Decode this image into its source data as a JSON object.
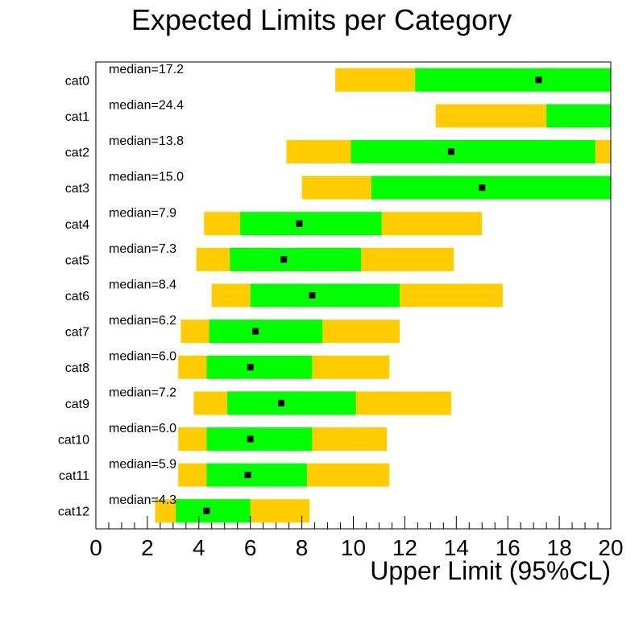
{
  "chart_data": {
    "type": "bar",
    "subtype": "brazil-band",
    "title": "Expected Limits per Category",
    "xlabel": "Upper Limit (95%CL)",
    "ylabel": "",
    "xlim": [
      0,
      20
    ],
    "xticks": [
      "0",
      "2",
      "4",
      "6",
      "8",
      "10",
      "12",
      "14",
      "16",
      "18",
      "20"
    ],
    "grid": false,
    "legend": "none",
    "colors": {
      "band68": "#00ff00",
      "band95": "#ffcc00",
      "median": "#000000",
      "frame": "#000000"
    },
    "categories": [
      {
        "label": "cat0",
        "median_label": "median=17.2",
        "median": 17.2,
        "band95": [
          9.3,
          20.0
        ],
        "band68": [
          12.4,
          20.0
        ]
      },
      {
        "label": "cat1",
        "median_label": "median=24.4",
        "median": 24.4,
        "band95": [
          13.2,
          20.0
        ],
        "band68": [
          17.5,
          20.0
        ]
      },
      {
        "label": "cat2",
        "median_label": "median=13.8",
        "median": 13.8,
        "band95": [
          7.4,
          20.0
        ],
        "band68": [
          9.9,
          19.4
        ]
      },
      {
        "label": "cat3",
        "median_label": "median=15.0",
        "median": 15.0,
        "band95": [
          8.0,
          20.0
        ],
        "band68": [
          10.7,
          20.0
        ]
      },
      {
        "label": "cat4",
        "median_label": "median=7.9",
        "median": 7.9,
        "band95": [
          4.2,
          15.0
        ],
        "band68": [
          5.6,
          11.1
        ]
      },
      {
        "label": "cat5",
        "median_label": "median=7.3",
        "median": 7.3,
        "band95": [
          3.9,
          13.9
        ],
        "band68": [
          5.2,
          10.3
        ]
      },
      {
        "label": "cat6",
        "median_label": "median=8.4",
        "median": 8.4,
        "band95": [
          4.5,
          15.8
        ],
        "band68": [
          6.0,
          11.8
        ]
      },
      {
        "label": "cat7",
        "median_label": "median=6.2",
        "median": 6.2,
        "band95": [
          3.3,
          11.8
        ],
        "band68": [
          4.4,
          8.8
        ]
      },
      {
        "label": "cat8",
        "median_label": "median=6.0",
        "median": 6.0,
        "band95": [
          3.2,
          11.4
        ],
        "band68": [
          4.3,
          8.4
        ]
      },
      {
        "label": "cat9",
        "median_label": "median=7.2",
        "median": 7.2,
        "band95": [
          3.8,
          13.8
        ],
        "band68": [
          5.1,
          10.1
        ]
      },
      {
        "label": "cat10",
        "median_label": "median=6.0",
        "median": 6.0,
        "band95": [
          3.2,
          11.3
        ],
        "band68": [
          4.3,
          8.4
        ]
      },
      {
        "label": "cat11",
        "median_label": "median=5.9",
        "median": 5.9,
        "band95": [
          3.2,
          11.4
        ],
        "band68": [
          4.3,
          8.2
        ]
      },
      {
        "label": "cat12",
        "median_label": "median=4.3",
        "median": 4.3,
        "band95": [
          2.3,
          8.3
        ],
        "band68": [
          3.1,
          6.0
        ]
      }
    ]
  }
}
